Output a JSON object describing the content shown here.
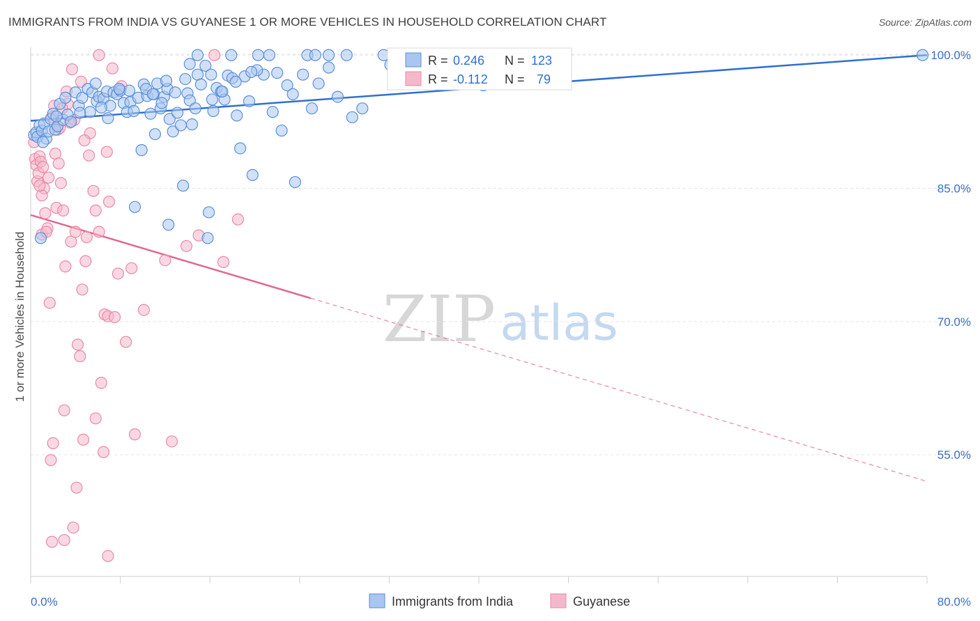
{
  "header": {
    "title": "IMMIGRANTS FROM INDIA VS GUYANESE 1 OR MORE VEHICLES IN HOUSEHOLD CORRELATION CHART",
    "source": "Source: ZipAtlas.com"
  },
  "watermark": {
    "zip": "ZIP",
    "atlas": "atlas"
  },
  "colors": {
    "india_fill": "#a9c6f0",
    "india_stroke": "#5b8fd8",
    "india_line": "#2f6fd1",
    "guyanese_fill": "#f5b8cb",
    "guyanese_stroke": "#e88aa8",
    "guyanese_line": "#e06890",
    "axis_tick_text": "#3a6fc4",
    "grid": "#e3e3e3"
  },
  "legend_stats": {
    "india": {
      "r_label": "R =",
      "r_value": "0.246",
      "n_label": "N =",
      "n_value": "123"
    },
    "guyanese": {
      "r_label": "R =",
      "r_value": "-0.112",
      "n_label": "N =",
      "n_value": "79"
    }
  },
  "bottom_legend": [
    "Immigrants from India",
    "Guyanese"
  ],
  "chart_data": {
    "type": "scatter",
    "title": "IMMIGRANTS FROM INDIA VS GUYANESE 1 OR MORE VEHICLES IN HOUSEHOLD CORRELATION CHART",
    "xlabel": "",
    "ylabel": "1 or more Vehicles in Household",
    "xlim": [
      0,
      80
    ],
    "ylim": [
      41.3,
      101.5
    ],
    "x_tick_labels": [
      "0.0%",
      "80.0%"
    ],
    "y_ticks": [
      55,
      70,
      85,
      100
    ],
    "y_tick_labels": [
      "55.0%",
      "70.0%",
      "85.0%",
      "100.0%"
    ],
    "grid": true,
    "legend_position": "top-center",
    "series": [
      {
        "name": "Immigrants from India",
        "r": 0.246,
        "n": 123,
        "trend": {
          "x": [
            0,
            80
          ],
          "y": [
            92.6,
            100.0
          ],
          "dashed_from": null
        },
        "points": [
          [
            0.3,
            91.0
          ],
          [
            0.5,
            91.3
          ],
          [
            0.6,
            90.8
          ],
          [
            0.8,
            92.1
          ],
          [
            0.9,
            79.4
          ],
          [
            1.0,
            91.5
          ],
          [
            1.2,
            92.3
          ],
          [
            1.4,
            90.6
          ],
          [
            1.6,
            91.4
          ],
          [
            1.8,
            92.8
          ],
          [
            2.0,
            93.4
          ],
          [
            2.2,
            91.6
          ],
          [
            2.4,
            92.0
          ],
          [
            2.6,
            94.5
          ],
          [
            2.9,
            92.7
          ],
          [
            3.3,
            93.3
          ],
          [
            3.6,
            92.5
          ],
          [
            4.0,
            95.8
          ],
          [
            4.3,
            94.3
          ],
          [
            4.6,
            95.2
          ],
          [
            5.1,
            96.2
          ],
          [
            5.3,
            93.6
          ],
          [
            5.5,
            95.8
          ],
          [
            5.9,
            94.8
          ],
          [
            6.1,
            95.3
          ],
          [
            6.5,
            95.1
          ],
          [
            6.8,
            95.9
          ],
          [
            7.1,
            94.3
          ],
          [
            7.4,
            95.8
          ],
          [
            7.7,
            95.6
          ],
          [
            8.0,
            96.0
          ],
          [
            8.3,
            94.6
          ],
          [
            8.6,
            93.6
          ],
          [
            8.9,
            94.7
          ],
          [
            9.2,
            93.7
          ],
          [
            9.6,
            95.2
          ],
          [
            9.9,
            89.3
          ],
          [
            10.1,
            96.7
          ],
          [
            10.4,
            95.4
          ],
          [
            10.7,
            93.4
          ],
          [
            11.0,
            95.6
          ],
          [
            11.1,
            91.1
          ],
          [
            11.3,
            96.8
          ],
          [
            11.6,
            94.0
          ],
          [
            11.9,
            95.3
          ],
          [
            12.2,
            96.2
          ],
          [
            12.4,
            92.8
          ],
          [
            12.7,
            91.4
          ],
          [
            12.9,
            95.8
          ],
          [
            13.1,
            93.5
          ],
          [
            13.4,
            92.1
          ],
          [
            13.6,
            85.3
          ],
          [
            13.8,
            97.3
          ],
          [
            14.0,
            95.7
          ],
          [
            14.2,
            94.9
          ],
          [
            14.4,
            92.2
          ],
          [
            14.7,
            94.0
          ],
          [
            14.9,
            97.8
          ],
          [
            15.2,
            96.7
          ],
          [
            15.6,
            98.8
          ],
          [
            15.8,
            79.4
          ],
          [
            16.1,
            97.8
          ],
          [
            16.3,
            93.7
          ],
          [
            16.6,
            96.3
          ],
          [
            17.0,
            95.9
          ],
          [
            17.3,
            95.0
          ],
          [
            17.6,
            97.7
          ],
          [
            18.0,
            97.4
          ],
          [
            18.4,
            93.2
          ],
          [
            18.7,
            89.5
          ],
          [
            19.1,
            97.6
          ],
          [
            19.5,
            94.8
          ],
          [
            19.8,
            86.5
          ],
          [
            20.3,
            100.0
          ],
          [
            20.8,
            97.8
          ],
          [
            21.6,
            93.6
          ],
          [
            22.4,
            91.5
          ],
          [
            22.9,
            96.6
          ],
          [
            23.4,
            95.6
          ],
          [
            24.3,
            97.8
          ],
          [
            25.7,
            96.8
          ],
          [
            26.6,
            98.6
          ],
          [
            27.4,
            95.3
          ],
          [
            28.7,
            93.0
          ],
          [
            29.6,
            94.0
          ],
          [
            10.3,
            96.2
          ],
          [
            11.7,
            94.6
          ],
          [
            14.9,
            100.0
          ],
          [
            16.2,
            95.0
          ],
          [
            17.9,
            100.0
          ],
          [
            20.2,
            98.3
          ],
          [
            21.3,
            100.0
          ],
          [
            24.7,
            100.0
          ],
          [
            25.4,
            100.0
          ],
          [
            26.6,
            100.0
          ],
          [
            28.2,
            100.0
          ],
          [
            31.5,
            100.0
          ],
          [
            32.1,
            98.9
          ],
          [
            35.3,
            100.0
          ],
          [
            37.3,
            99.3
          ],
          [
            40.4,
            96.6
          ],
          [
            79.6,
            100.0
          ],
          [
            4.4,
            93.5
          ],
          [
            6.9,
            92.9
          ],
          [
            8.8,
            96.0
          ],
          [
            12.1,
            97.1
          ],
          [
            9.3,
            82.9
          ],
          [
            12.3,
            80.9
          ],
          [
            15.9,
            82.3
          ],
          [
            23.6,
            85.7
          ],
          [
            14.2,
            99.0
          ],
          [
            18.3,
            97.0
          ],
          [
            7.9,
            96.2
          ],
          [
            5.8,
            96.8
          ],
          [
            3.1,
            95.2
          ],
          [
            2.3,
            93.1
          ],
          [
            1.1,
            90.2
          ],
          [
            6.3,
            94.1
          ],
          [
            17.1,
            95.9
          ],
          [
            19.7,
            98.1
          ],
          [
            10.9,
            95.6
          ],
          [
            22.0,
            98.0
          ],
          [
            25.1,
            94.0
          ]
        ]
      },
      {
        "name": "Guyanese",
        "r": -0.112,
        "n": 79,
        "trend": {
          "x": [
            0,
            80
          ],
          "y": [
            82.0,
            52.0
          ],
          "dashed_from": 25
        },
        "points": [
          [
            0.3,
            90.2
          ],
          [
            0.4,
            88.3
          ],
          [
            0.5,
            87.6
          ],
          [
            0.6,
            85.8
          ],
          [
            0.7,
            86.7
          ],
          [
            0.8,
            88.6
          ],
          [
            0.9,
            88.0
          ],
          [
            1.0,
            79.8
          ],
          [
            1.1,
            87.4
          ],
          [
            1.2,
            85.0
          ],
          [
            1.3,
            82.2
          ],
          [
            1.5,
            80.5
          ],
          [
            1.6,
            86.2
          ],
          [
            1.7,
            72.1
          ],
          [
            1.9,
            93.0
          ],
          [
            2.1,
            94.3
          ],
          [
            2.3,
            82.8
          ],
          [
            2.4,
            91.6
          ],
          [
            2.6,
            91.8
          ],
          [
            2.7,
            85.6
          ],
          [
            2.9,
            82.5
          ],
          [
            3.1,
            76.2
          ],
          [
            3.3,
            94.5
          ],
          [
            3.6,
            79.0
          ],
          [
            3.9,
            92.7
          ],
          [
            4.0,
            80.1
          ],
          [
            4.2,
            67.4
          ],
          [
            4.4,
            66.1
          ],
          [
            4.6,
            73.6
          ],
          [
            4.9,
            76.8
          ],
          [
            5.3,
            91.2
          ],
          [
            5.6,
            84.7
          ],
          [
            5.8,
            82.5
          ],
          [
            6.1,
            80.1
          ],
          [
            6.3,
            63.1
          ],
          [
            6.6,
            70.8
          ],
          [
            6.9,
            70.6
          ],
          [
            7.3,
            98.5
          ],
          [
            7.8,
            75.4
          ],
          [
            8.5,
            67.7
          ],
          [
            9.3,
            57.3
          ],
          [
            10.1,
            71.3
          ],
          [
            12.6,
            56.5
          ],
          [
            13.9,
            78.5
          ],
          [
            1.4,
            80.1
          ],
          [
            2.0,
            56.3
          ],
          [
            1.8,
            54.4
          ],
          [
            3.0,
            60.0
          ],
          [
            3.8,
            46.8
          ],
          [
            1.9,
            45.2
          ],
          [
            3.0,
            45.4
          ],
          [
            6.9,
            43.6
          ],
          [
            5.8,
            59.1
          ],
          [
            4.7,
            56.7
          ],
          [
            4.1,
            51.3
          ],
          [
            6.5,
            55.3
          ],
          [
            12.0,
            76.9
          ],
          [
            15.0,
            79.7
          ],
          [
            18.5,
            81.5
          ],
          [
            17.2,
            76.7
          ],
          [
            7.5,
            70.5
          ],
          [
            4.5,
            97.0
          ],
          [
            3.7,
            98.4
          ],
          [
            6.1,
            100.0
          ],
          [
            16.4,
            100.0
          ],
          [
            8.1,
            96.5
          ],
          [
            3.5,
            92.4
          ],
          [
            2.2,
            88.9
          ],
          [
            1.0,
            84.2
          ],
          [
            0.8,
            85.3
          ],
          [
            2.5,
            87.8
          ],
          [
            3.2,
            95.9
          ],
          [
            5.2,
            88.7
          ],
          [
            6.8,
            89.1
          ],
          [
            4.8,
            90.4
          ],
          [
            2.8,
            94.0
          ],
          [
            7.0,
            83.5
          ],
          [
            5.0,
            79.5
          ],
          [
            9.0,
            76.0
          ]
        ]
      }
    ]
  }
}
